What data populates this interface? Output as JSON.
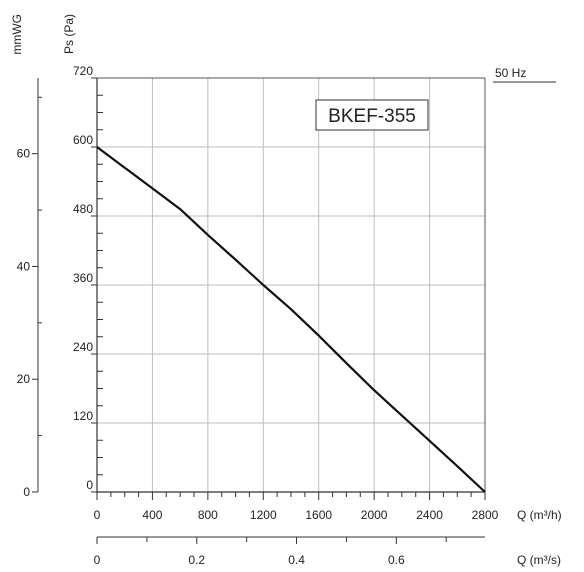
{
  "chart_data": {
    "type": "line",
    "model_label": "BKEF-355",
    "frequency_label": "50 Hz",
    "grid": true,
    "left_axis_label": "Ps (Pa)",
    "outer_axis_label": "mmWG",
    "x_axis_label": "Q (m³/h)",
    "x2_axis_label": "Q (m³/s)",
    "xlim": [
      0,
      2800
    ],
    "ylim": [
      0,
      720
    ],
    "pa_ticks": [
      "0",
      "120",
      "240",
      "360",
      "480",
      "600",
      "720"
    ],
    "mmwg_ticks": [
      "0",
      "20",
      "40",
      "60"
    ],
    "x_ticks": [
      "0",
      "400",
      "800",
      "1200",
      "1600",
      "2000",
      "2400",
      "2800"
    ],
    "x2_ticks": [
      "0",
      "0.2",
      "0.4",
      "0.6"
    ],
    "series": [
      {
        "x": [
          0,
          200,
          400,
          600,
          800,
          1000,
          1200,
          1400,
          1600,
          1800,
          2000,
          2200,
          2400,
          2600,
          2800
        ],
        "y": [
          600,
          564,
          528,
          492,
          447,
          404,
          360,
          318,
          272,
          224,
          177,
          133,
          89,
          45,
          0
        ]
      }
    ]
  }
}
